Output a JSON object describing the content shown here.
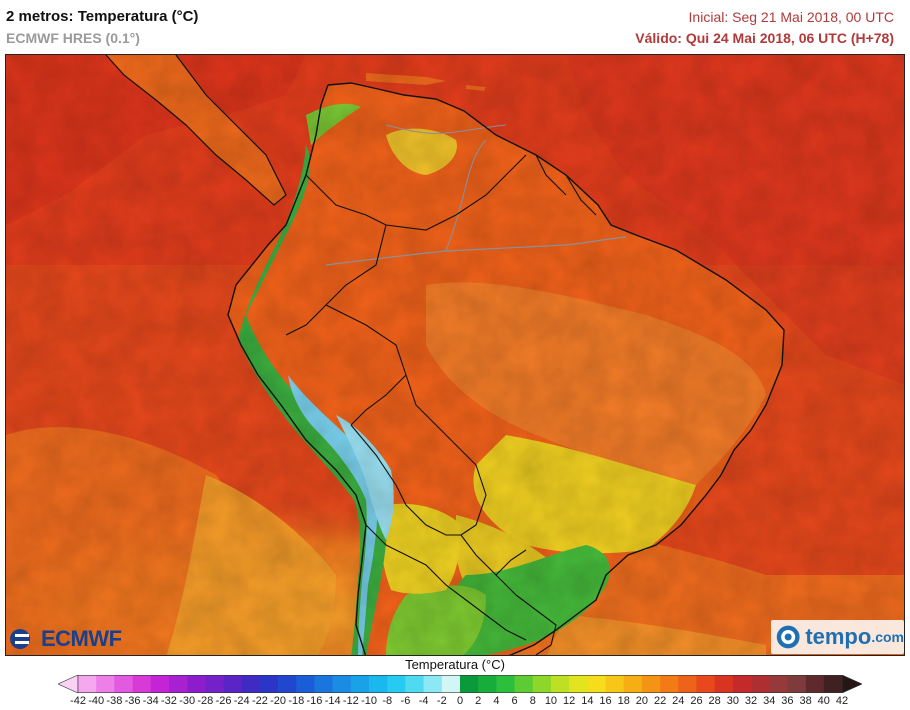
{
  "header": {
    "title": "2 metros: Temperatura (°C)",
    "model": "ECMWF HRES (0.1°)",
    "initial": "Inicial: Seg 21 Mai 2018, 00 UTC",
    "valid": "Válido: Qui 24 Mai 2018, 06 UTC (H+78)"
  },
  "logos": {
    "ecmwf": "ECMWF",
    "tempo": "tempo",
    "tempo_domain": ".com"
  },
  "legend": {
    "title": "Temperatura (°C)",
    "ticks": [
      "-42",
      "-40",
      "-38",
      "-36",
      "-34",
      "-32",
      "-30",
      "-28",
      "-26",
      "-24",
      "-22",
      "-20",
      "-18",
      "-16",
      "-14",
      "-12",
      "-10",
      "-8",
      "-6",
      "-4",
      "-2",
      "0",
      "2",
      "4",
      "6",
      "8",
      "10",
      "12",
      "14",
      "16",
      "18",
      "20",
      "22",
      "24",
      "26",
      "28",
      "30",
      "32",
      "34",
      "36",
      "38",
      "40",
      "42"
    ],
    "colors": [
      "#fbd2f5",
      "#f5a8ee",
      "#ee7ee8",
      "#e25ae0",
      "#d83ad8",
      "#c324d6",
      "#a91fd2",
      "#8d1dcc",
      "#7421c9",
      "#5a24c6",
      "#3f2ac4",
      "#2b36c9",
      "#1f48cf",
      "#1a5ed7",
      "#1a75de",
      "#1a8ce4",
      "#1aa2e9",
      "#1ab8ee",
      "#25cbf0",
      "#4fdaf2",
      "#8be8f4",
      "#d2f5f6",
      "#0a9a3c",
      "#17ad3c",
      "#2cbf3c",
      "#5dcc32",
      "#8dd72a",
      "#bde024",
      "#e2e41f",
      "#f5dc1c",
      "#f7c617",
      "#f7ad14",
      "#f59414",
      "#f27b16",
      "#ee6219",
      "#e8481c",
      "#d93421",
      "#c42a2a",
      "#ad2f31",
      "#96393b",
      "#7f3a3c",
      "#5f2a2b",
      "#402020",
      "#241615"
    ]
  },
  "colors": {
    "ocean_warm": "#e7481c",
    "ocean_hot": "#e13a1d",
    "land_base": "#f2621a",
    "land_cool": "#f4952b",
    "yellow": "#f0d622",
    "green": "#4cbf3a",
    "andes_blue": "#7fd8f0",
    "border": "#111111",
    "river": "#8a8f98"
  }
}
